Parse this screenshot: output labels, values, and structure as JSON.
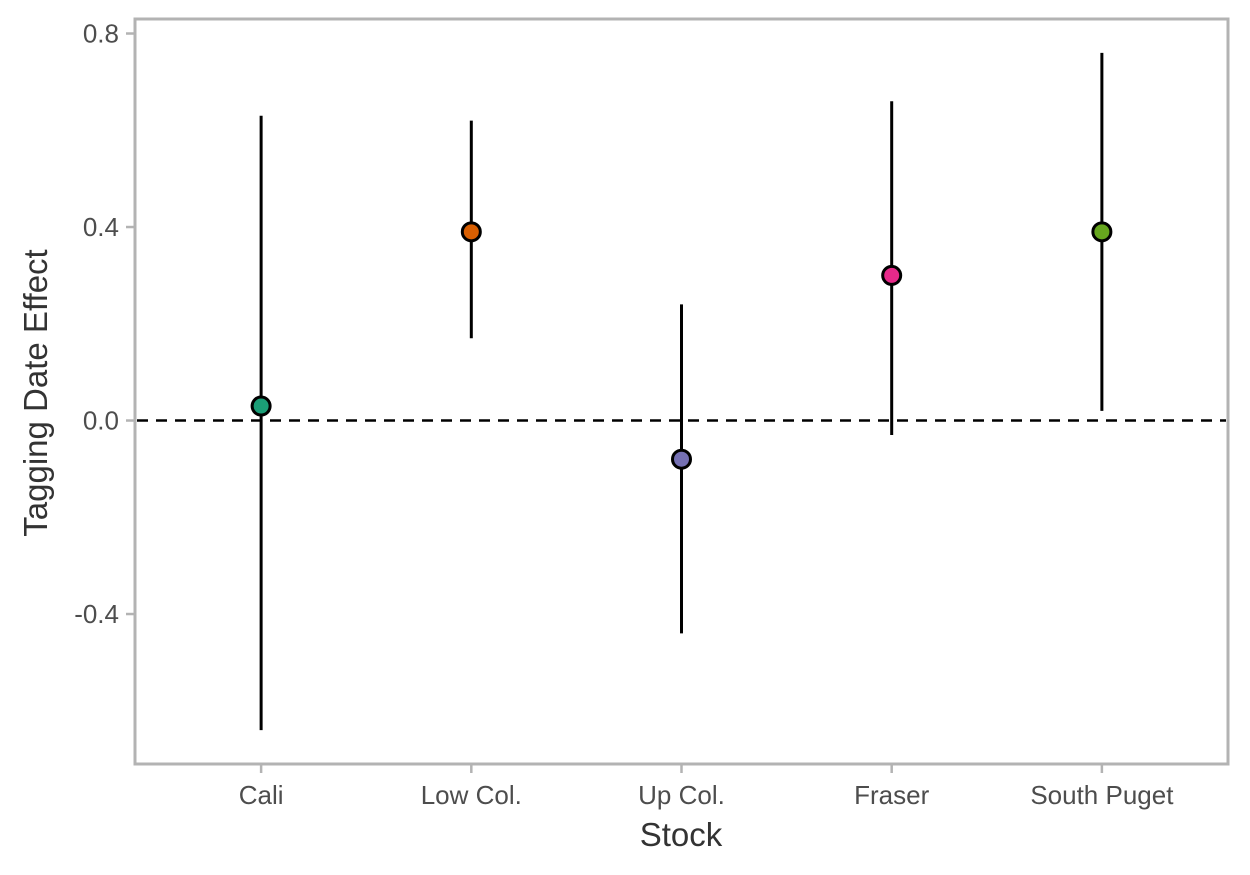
{
  "chart_data": {
    "type": "scatter",
    "title": "",
    "xlabel": "Stock",
    "ylabel": "Tagging Date Effect",
    "categories": [
      "Cali",
      "Low Col.",
      "Up Col.",
      "Fraser",
      "South Puget"
    ],
    "points": [
      {
        "category": "Cali",
        "estimate": 0.03,
        "lower": -0.64,
        "upper": 0.63,
        "color": "#1b9e77"
      },
      {
        "category": "Low Col.",
        "estimate": 0.39,
        "lower": 0.17,
        "upper": 0.62,
        "color": "#d95f02"
      },
      {
        "category": "Up Col.",
        "estimate": -0.08,
        "lower": -0.44,
        "upper": 0.24,
        "color": "#7570b3"
      },
      {
        "category": "Fraser",
        "estimate": 0.3,
        "lower": -0.03,
        "upper": 0.66,
        "color": "#e7298a"
      },
      {
        "category": "South Puget",
        "estimate": 0.39,
        "lower": 0.02,
        "upper": 0.76,
        "color": "#66a61e"
      }
    ],
    "yticks": [
      -0.4,
      0.0,
      0.4,
      0.8
    ],
    "ytick_labels": [
      "-0.4",
      "0.0",
      "0.4",
      "0.8"
    ],
    "ylim": [
      -0.71,
      0.83
    ],
    "reference_line": {
      "y": 0,
      "style": "dashed"
    },
    "grid": false,
    "legend": "none"
  }
}
